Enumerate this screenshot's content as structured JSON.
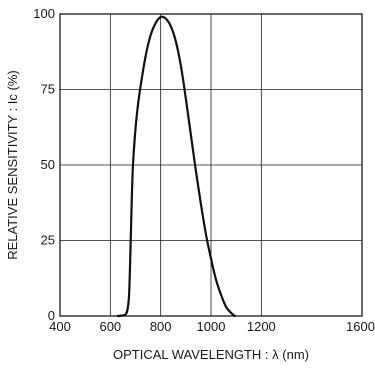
{
  "chart_data": {
    "type": "line",
    "xlabel": "OPTICAL  WAVELENGTH : λ (nm)",
    "ylabel": "RELATIVE  SENSITIVITY : Ic (%)",
    "xlim": [
      400,
      1600
    ],
    "ylim": [
      0,
      100
    ],
    "x_ticks": [
      400,
      600,
      800,
      1000,
      1200,
      1600
    ],
    "x_tick_labels": [
      "400",
      "600",
      "800",
      "1000",
      "1200",
      "1600"
    ],
    "y_ticks": [
      0,
      25,
      50,
      75,
      100
    ],
    "y_tick_labels": [
      "0",
      "25",
      "50",
      "75",
      "100"
    ],
    "grid": true,
    "series": [
      {
        "x": [
          630,
          660,
          670,
          675,
          680,
          685,
          690,
          700,
          710,
          720,
          740,
          760,
          780,
          800,
          820,
          840,
          860,
          880,
          900,
          920,
          940,
          960,
          980,
          1000,
          1020,
          1040,
          1060,
          1080,
          1095
        ],
        "y": [
          0,
          0.5,
          3,
          8,
          22,
          38,
          50,
          62,
          70,
          76,
          86,
          93,
          97,
          99,
          98.5,
          96,
          91,
          83,
          72,
          60,
          48,
          37,
          27,
          19,
          12,
          7,
          3,
          1,
          0
        ]
      }
    ]
  }
}
